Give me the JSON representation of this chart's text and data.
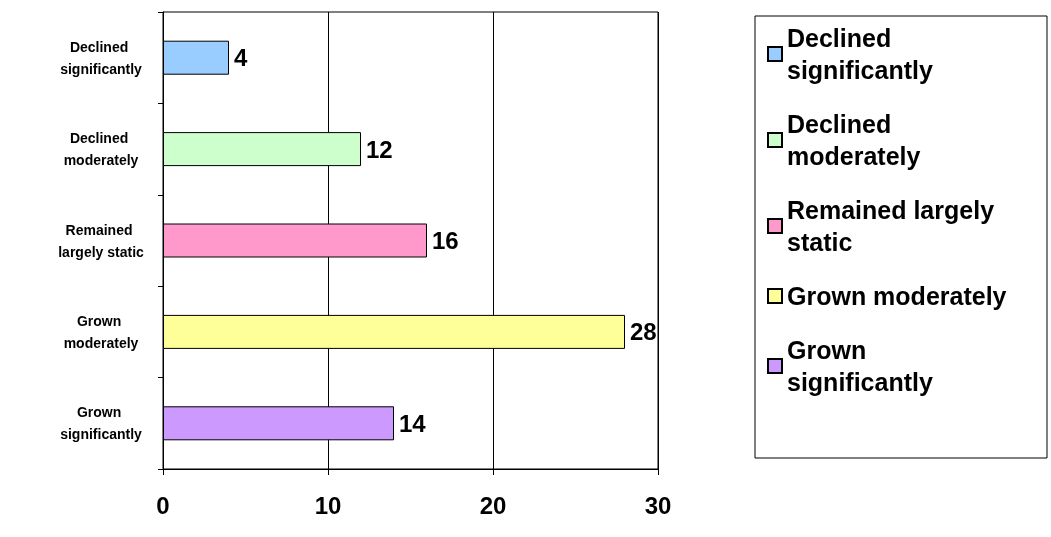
{
  "chart_data": {
    "type": "bar",
    "orientation": "horizontal",
    "categories": [
      "Declined significantly",
      "Declined moderately",
      "Remained largely static",
      "Grown moderately",
      "Grown significantly"
    ],
    "series": [
      {
        "name": "Declined significantly",
        "color": "#99ccff",
        "values": [
          4,
          null,
          null,
          null,
          null
        ]
      },
      {
        "name": "Declined moderately",
        "color": "#ccffcc",
        "values": [
          null,
          12,
          null,
          null,
          null
        ]
      },
      {
        "name": "Remained largely static",
        "color": "#ff99cc",
        "values": [
          null,
          null,
          16,
          null,
          null
        ]
      },
      {
        "name": "Grown moderately",
        "color": "#ffff99",
        "values": [
          null,
          null,
          null,
          28,
          null
        ]
      },
      {
        "name": "Grown significantly",
        "color": "#cc99ff",
        "values": [
          null,
          null,
          null,
          null,
          14
        ]
      }
    ],
    "xlim": [
      0,
      30
    ],
    "xticks": [
      0,
      10,
      20,
      30
    ],
    "grid": "x",
    "legend": "right",
    "data_labels": true
  }
}
